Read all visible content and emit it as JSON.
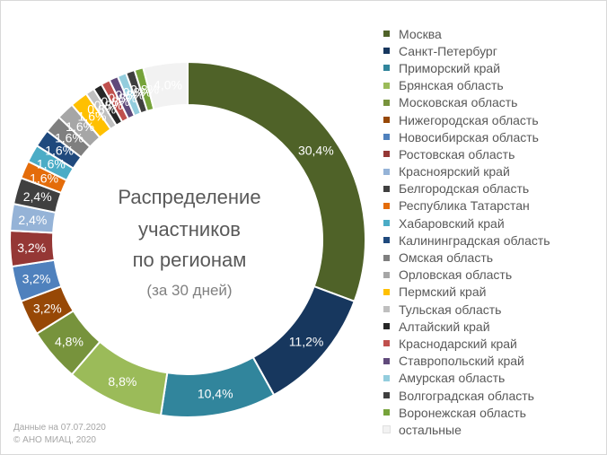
{
  "chart_data": {
    "type": "donut",
    "center_text": {
      "line1": "Распределение",
      "line2": "участников",
      "line3": "по регионам",
      "line4": "(за 30 дней)"
    },
    "footer": {
      "line1": "Данные на 07.07.2020",
      "line2": "© АНО МИАЦ, 2020"
    },
    "series": [
      {
        "name": "Москва",
        "value": 30.4,
        "label": "30,4%",
        "color": "#4f6228"
      },
      {
        "name": "Санкт-Петербург",
        "value": 11.2,
        "label": "11,2%",
        "color": "#17375e"
      },
      {
        "name": "Приморский край",
        "value": 10.4,
        "label": "10,4%",
        "color": "#31859c"
      },
      {
        "name": "Брянская область",
        "value": 8.8,
        "label": "8,8%",
        "color": "#9bbb59"
      },
      {
        "name": "Московская область",
        "value": 4.8,
        "label": "4,8%",
        "color": "#77933c"
      },
      {
        "name": "Нижегородская область",
        "value": 3.2,
        "label": "3,2%",
        "color": "#974806"
      },
      {
        "name": "Новосибирская область",
        "value": 3.2,
        "label": "3,2%",
        "color": "#4f81bd"
      },
      {
        "name": "Ростовская область",
        "value": 3.2,
        "label": "3,2%",
        "color": "#953735"
      },
      {
        "name": "Красноярский край",
        "value": 2.4,
        "label": "2,4%",
        "color": "#95b3d7"
      },
      {
        "name": "Белгородская область",
        "value": 2.4,
        "label": "2,4%",
        "color": "#404040"
      },
      {
        "name": "Республика Татарстан",
        "value": 1.6,
        "label": "1,6%",
        "color": "#e46c0a"
      },
      {
        "name": "Хабаровский край",
        "value": 1.6,
        "label": "1,6%",
        "color": "#4bacc6"
      },
      {
        "name": "Калининградская область",
        "value": 1.6,
        "label": "1,6%",
        "color": "#1f497d"
      },
      {
        "name": "Омская область",
        "value": 1.6,
        "label": "1,6%",
        "color": "#7f7f7f"
      },
      {
        "name": "Орловская область",
        "value": 1.6,
        "label": "1,6%",
        "color": "#a6a6a6"
      },
      {
        "name": "Пермский край",
        "value": 1.6,
        "label": "1,6%",
        "color": "#ffc000"
      },
      {
        "name": "Тульская область",
        "value": 0.8,
        "label": "0,8%",
        "color": "#bfbfbf"
      },
      {
        "name": "Алтайский край",
        "value": 0.8,
        "label": "0,8%",
        "color": "#262626"
      },
      {
        "name": "Краснодарский край",
        "value": 0.8,
        "label": "0,8%",
        "color": "#c0504d"
      },
      {
        "name": "Ставропольский край",
        "value": 0.8,
        "label": "0,8%",
        "color": "#604a7b"
      },
      {
        "name": "Амурская область",
        "value": 0.8,
        "label": "0,8%",
        "color": "#93cddd"
      },
      {
        "name": "Волгоградская область",
        "value": 0.8,
        "label": "0,8%",
        "color": "#3f3f3f"
      },
      {
        "name": "Воронежская область",
        "value": 0.8,
        "label": "0,8%",
        "color": "#76a33a"
      },
      {
        "name": "остальные",
        "value": 4.0,
        "label": "4,0%",
        "color": "#f2f2f2"
      }
    ],
    "legend_position": "right"
  }
}
